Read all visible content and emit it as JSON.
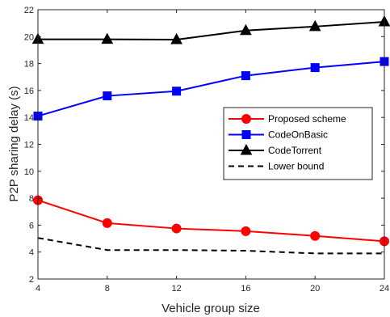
{
  "chart_data": {
    "type": "line",
    "xlabel": "Vehicle group size",
    "ylabel": "P2P sharing delay (s)",
    "x": [
      4,
      8,
      12,
      16,
      20,
      24
    ],
    "xticks": [
      "4",
      "8",
      "12",
      "16",
      "20",
      "24"
    ],
    "yticks": [
      "2",
      "4",
      "6",
      "8",
      "10",
      "12",
      "14",
      "16",
      "18",
      "20",
      "22"
    ],
    "xlim": [
      4,
      24
    ],
    "ylim": [
      2,
      22
    ],
    "grid": false,
    "legend_position": "center-right",
    "series": [
      {
        "name": "Proposed scheme",
        "color": "#ff0000",
        "marker": "circle",
        "dash": "solid",
        "values": [
          7.85,
          6.15,
          5.75,
          5.55,
          5.2,
          4.8
        ]
      },
      {
        "name": "CodeOnBasic",
        "color": "#0000ff",
        "marker": "square",
        "dash": "solid",
        "values": [
          14.1,
          15.6,
          15.95,
          17.1,
          17.7,
          18.15
        ]
      },
      {
        "name": "CodeTorrent",
        "color": "#000000",
        "marker": "triangle",
        "dash": "solid",
        "values": [
          19.8,
          19.8,
          19.78,
          20.45,
          20.75,
          21.1
        ]
      },
      {
        "name": "Lower bound",
        "color": "#000000",
        "marker": "none",
        "dash": "dashed",
        "values": [
          5.05,
          4.15,
          4.15,
          4.1,
          3.9,
          3.9
        ]
      }
    ]
  }
}
